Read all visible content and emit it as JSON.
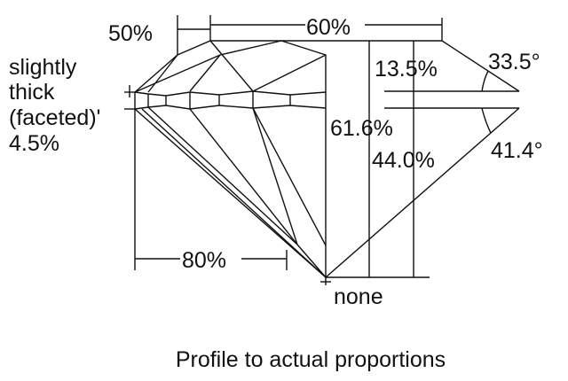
{
  "diagram": {
    "caption": "Profile to actual proportions",
    "labels": {
      "crown_angle_sep_width": "50%",
      "table": "60%",
      "crown_height": "13.5%",
      "crown_angle": "33.5°",
      "total_depth": "61.6%",
      "pavilion_depth": "44.0%",
      "pavilion_angle": "41.4°",
      "lower_half": "80%",
      "culet": "none",
      "girdle_line1": "slightly",
      "girdle_line2": "thick",
      "girdle_line3": "(faceted)'",
      "girdle_line4": "4.5%"
    },
    "line_color": "#111111"
  }
}
